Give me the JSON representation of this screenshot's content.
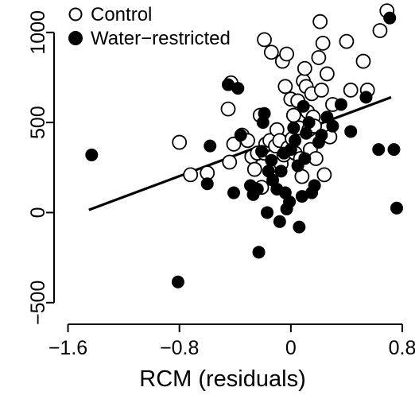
{
  "chart_data": {
    "type": "scatter",
    "title": "",
    "xlabel": "RCM (residuals)",
    "ylabel": "",
    "xlim": [
      -1.7,
      0.8
    ],
    "ylim": [
      -620,
      1180
    ],
    "x_ticks": [
      {
        "value": -1.6,
        "label": "−1.6"
      },
      {
        "value": -0.8,
        "label": "−0.8"
      },
      {
        "value": 0,
        "label": "0"
      },
      {
        "value": 0.8,
        "label": "0.8"
      }
    ],
    "y_ticks": [
      {
        "value": -500,
        "label": "−500"
      },
      {
        "value": 0,
        "label": "0"
      },
      {
        "value": 500,
        "label": "500"
      },
      {
        "value": 1000,
        "label": "1000"
      }
    ],
    "grid": false,
    "legend_position": "top-left",
    "series": [
      {
        "name": "Control",
        "marker": "open-circle",
        "color": "#000000",
        "points": [
          [
            -0.8,
            390
          ],
          [
            -0.72,
            210
          ],
          [
            -0.6,
            220
          ],
          [
            -0.45,
            575
          ],
          [
            -0.43,
            720
          ],
          [
            -0.44,
            280
          ],
          [
            -0.41,
            380
          ],
          [
            -0.35,
            430
          ],
          [
            -0.31,
            400
          ],
          [
            -0.28,
            310
          ],
          [
            -0.26,
            240
          ],
          [
            -0.24,
            330
          ],
          [
            -0.22,
            540
          ],
          [
            -0.21,
            140
          ],
          [
            -0.19,
            330
          ],
          [
            -0.18,
            380
          ],
          [
            -0.15,
            400
          ],
          [
            -0.14,
            890
          ],
          [
            -0.13,
            310
          ],
          [
            -0.12,
            240
          ],
          [
            -0.11,
            370
          ],
          [
            -0.1,
            460
          ],
          [
            -0.08,
            400
          ],
          [
            -0.07,
            270
          ],
          [
            -0.06,
            840
          ],
          [
            -0.05,
            320
          ],
          [
            -0.04,
            700
          ],
          [
            -0.03,
            880
          ],
          [
            -0.02,
            360
          ],
          [
            0.0,
            630
          ],
          [
            0.01,
            410
          ],
          [
            0.02,
            540
          ],
          [
            0.03,
            330
          ],
          [
            0.05,
            620
          ],
          [
            0.06,
            470
          ],
          [
            0.07,
            300
          ],
          [
            0.08,
            200
          ],
          [
            0.09,
            730
          ],
          [
            0.1,
            800
          ],
          [
            0.11,
            700
          ],
          [
            0.12,
            560
          ],
          [
            0.13,
            460
          ],
          [
            0.14,
            350
          ],
          [
            0.15,
            660
          ],
          [
            0.16,
            530
          ],
          [
            0.17,
            480
          ],
          [
            0.18,
            300
          ],
          [
            0.2,
            860
          ],
          [
            0.21,
            1060
          ],
          [
            0.22,
            680
          ],
          [
            0.23,
            940
          ],
          [
            0.24,
            210
          ],
          [
            0.26,
            770
          ],
          [
            0.28,
            420
          ],
          [
            0.3,
            600
          ],
          [
            0.4,
            950
          ],
          [
            0.43,
            680
          ],
          [
            0.52,
            840
          ],
          [
            0.55,
            680
          ],
          [
            0.64,
            1010
          ],
          [
            0.69,
            1120
          ],
          [
            -0.19,
            960
          ]
        ]
      },
      {
        "name": "Water−restricted",
        "marker": "filled-circle",
        "color": "#000000",
        "points": [
          [
            -1.43,
            320
          ],
          [
            -0.81,
            -385
          ],
          [
            -0.6,
            160
          ],
          [
            -0.58,
            370
          ],
          [
            -0.45,
            710
          ],
          [
            -0.41,
            110
          ],
          [
            -0.38,
            690
          ],
          [
            -0.36,
            430
          ],
          [
            -0.29,
            150
          ],
          [
            -0.27,
            100
          ],
          [
            -0.24,
            130
          ],
          [
            -0.23,
            -220
          ],
          [
            -0.21,
            340
          ],
          [
            -0.2,
            500
          ],
          [
            -0.19,
            550
          ],
          [
            -0.17,
            0
          ],
          [
            -0.16,
            230
          ],
          [
            -0.14,
            290
          ],
          [
            -0.13,
            180
          ],
          [
            -0.1,
            130
          ],
          [
            -0.08,
            -50
          ],
          [
            -0.07,
            230
          ],
          [
            -0.05,
            330
          ],
          [
            -0.04,
            110
          ],
          [
            -0.03,
            20
          ],
          [
            -0.01,
            60
          ],
          [
            0.0,
            350
          ],
          [
            0.02,
            470
          ],
          [
            0.03,
            400
          ],
          [
            0.05,
            260
          ],
          [
            0.06,
            -80
          ],
          [
            0.08,
            90
          ],
          [
            0.09,
            590
          ],
          [
            0.1,
            300
          ],
          [
            0.11,
            440
          ],
          [
            0.13,
            500
          ],
          [
            0.15,
            110
          ],
          [
            0.17,
            150
          ],
          [
            0.2,
            390
          ],
          [
            0.22,
            430
          ],
          [
            0.26,
            530
          ],
          [
            0.3,
            480
          ],
          [
            0.36,
            600
          ],
          [
            0.43,
            450
          ],
          [
            0.54,
            640
          ],
          [
            0.63,
            350
          ],
          [
            0.71,
            1080
          ],
          [
            0.74,
            350
          ],
          [
            0.76,
            25
          ]
        ]
      }
    ],
    "trend_line": {
      "x": [
        -1.45,
        0.72
      ],
      "y": [
        15,
        640
      ]
    }
  }
}
